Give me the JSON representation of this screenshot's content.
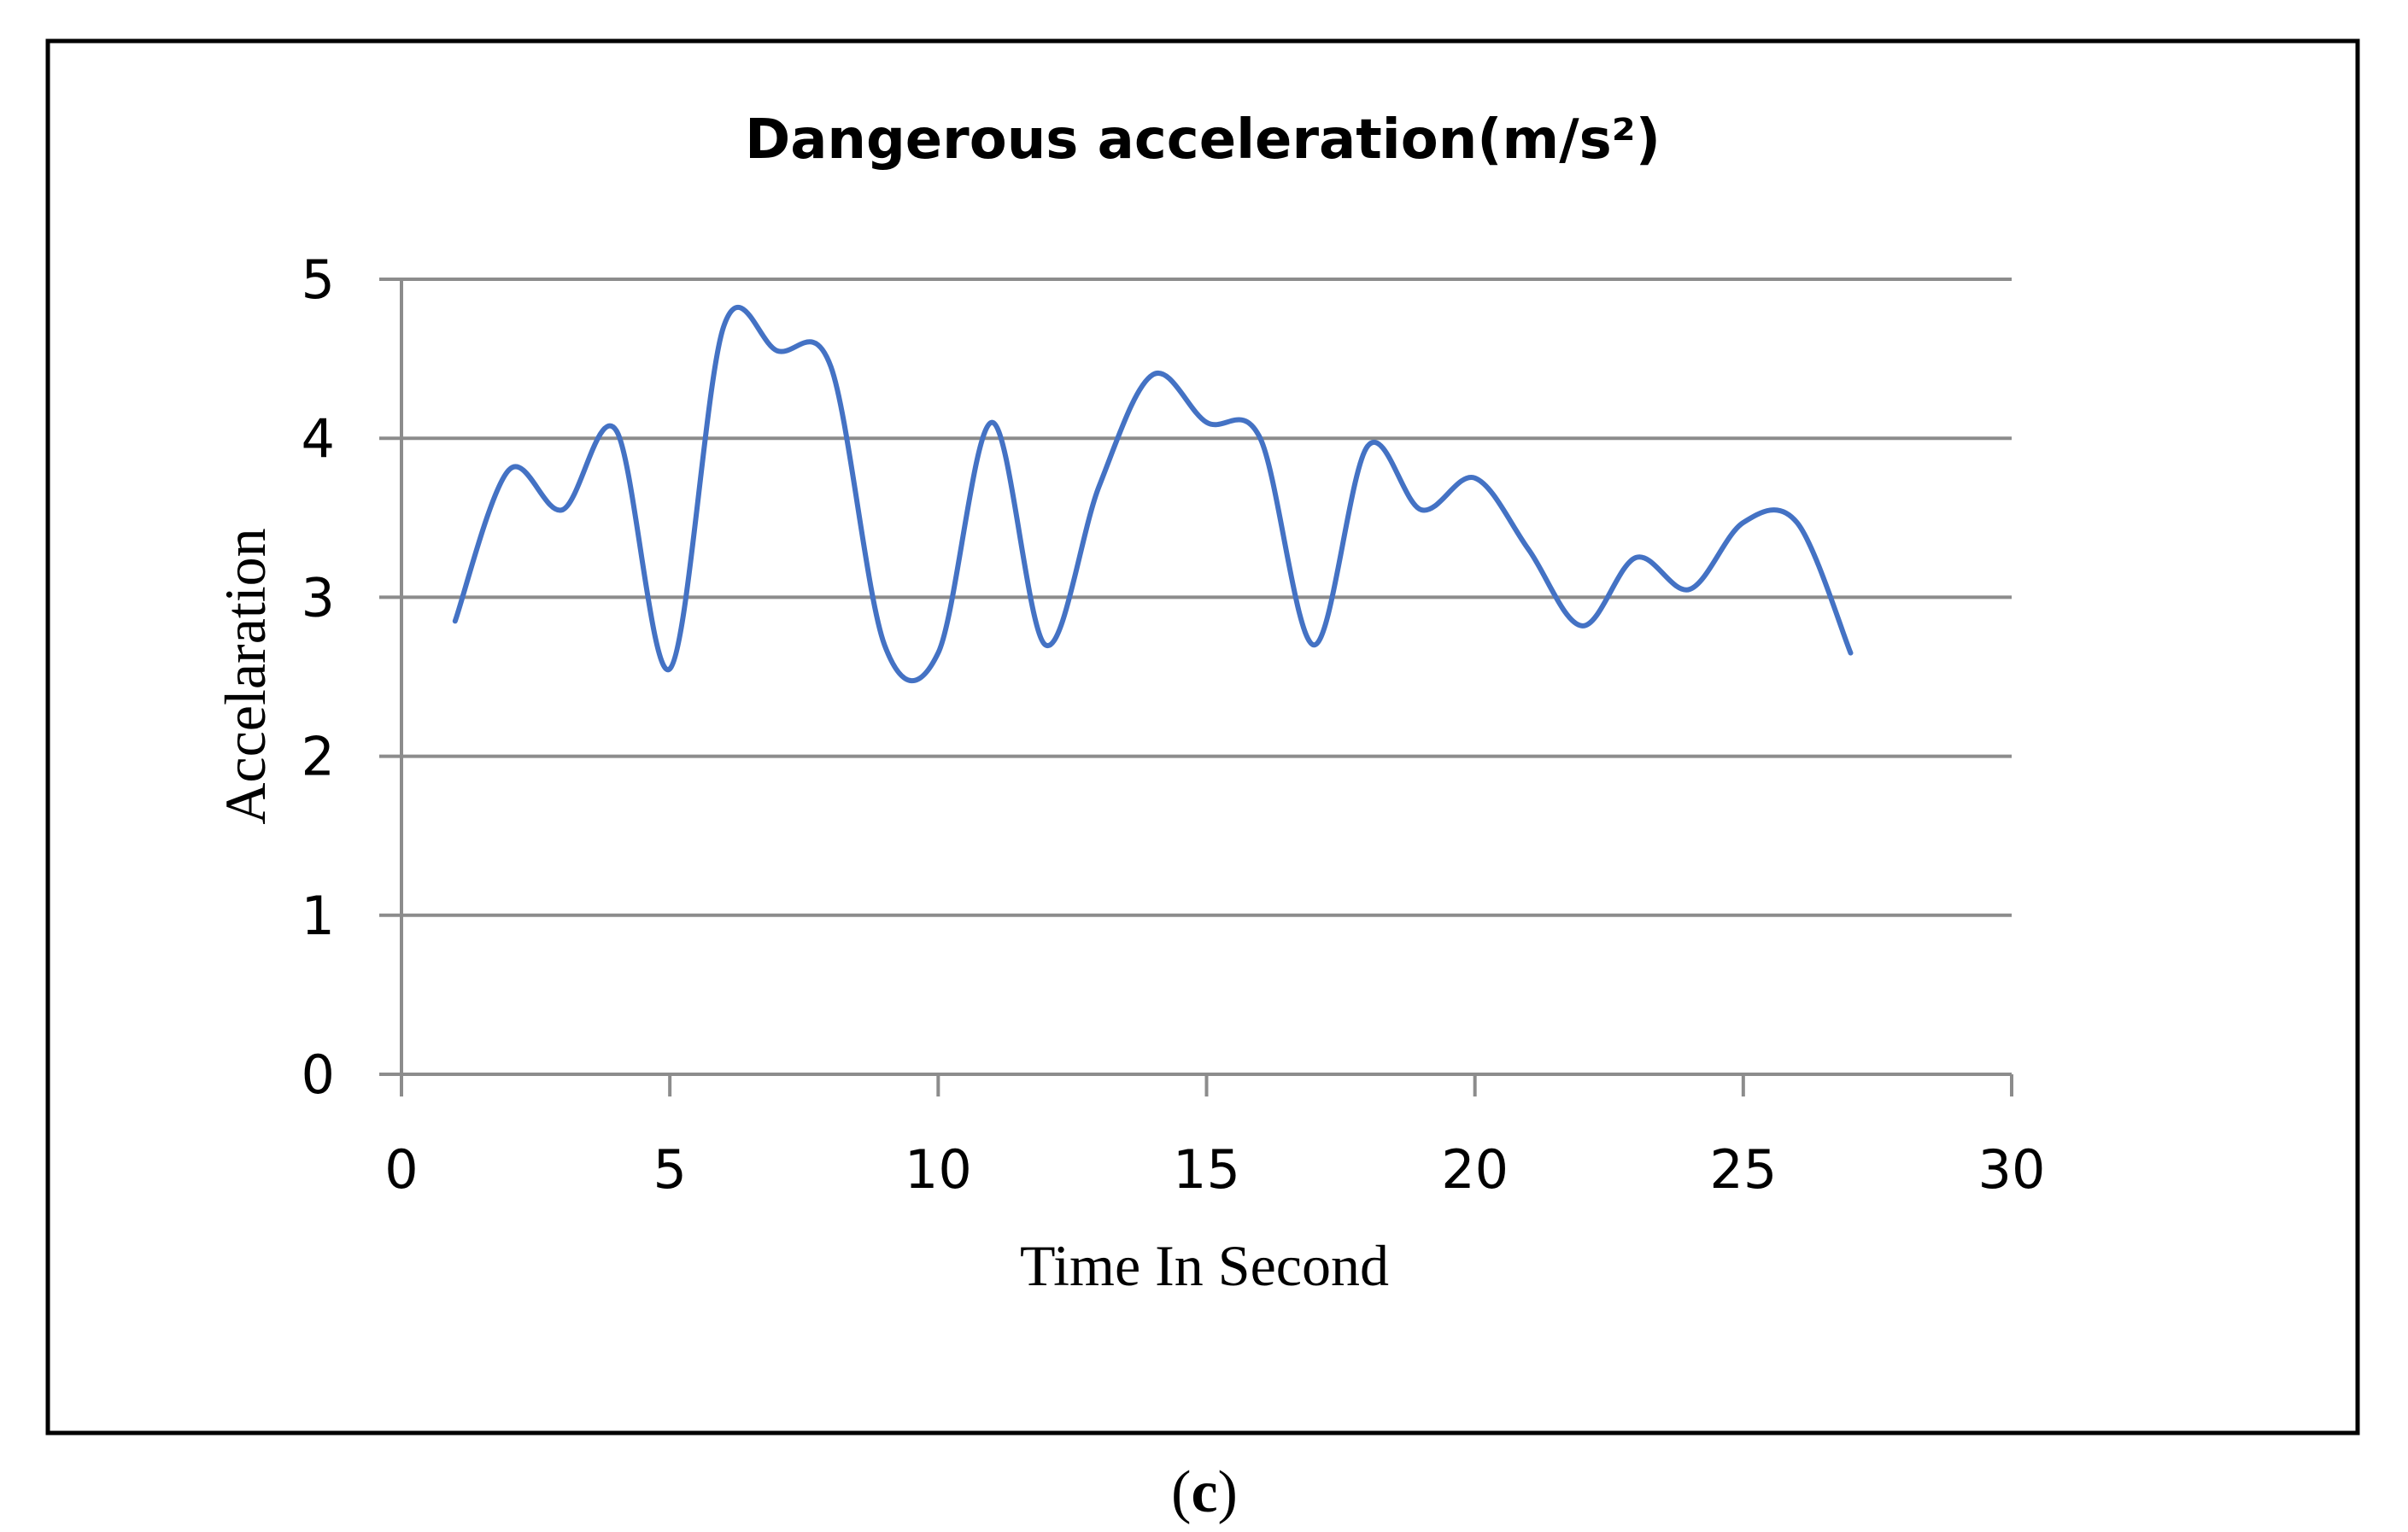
{
  "caption": {
    "open": "(",
    "letter": "c",
    "close": ")"
  },
  "colors": {
    "line": "#4472C4",
    "grid": "#8C8C8C",
    "frame": "#000000"
  },
  "chart_data": {
    "type": "line",
    "title": "Dangerous acceleration(m/s²)",
    "xlabel": "Time In Second",
    "ylabel": "Accelaration",
    "xlim": [
      0,
      30
    ],
    "ylim": [
      0,
      5
    ],
    "xticks": [
      0,
      5,
      10,
      15,
      20,
      25,
      30
    ],
    "yticks": [
      0,
      1,
      2,
      3,
      4,
      5
    ],
    "grid": true,
    "smooth": true,
    "x": [
      1,
      2,
      3,
      4,
      5,
      6,
      7,
      8,
      9,
      10,
      11,
      12,
      13,
      14,
      15,
      16,
      17,
      18,
      19,
      20,
      21,
      22,
      23,
      24,
      25,
      26,
      27
    ],
    "series": [
      {
        "values": [
          2.85,
          3.8,
          3.55,
          4.05,
          2.55,
          4.7,
          4.55,
          4.45,
          2.7,
          2.65,
          4.1,
          2.7,
          3.7,
          4.4,
          4.1,
          4.0,
          2.7,
          3.95,
          3.55,
          3.75,
          3.3,
          2.82,
          3.25,
          3.05,
          3.47,
          3.47,
          2.65
        ]
      }
    ]
  }
}
